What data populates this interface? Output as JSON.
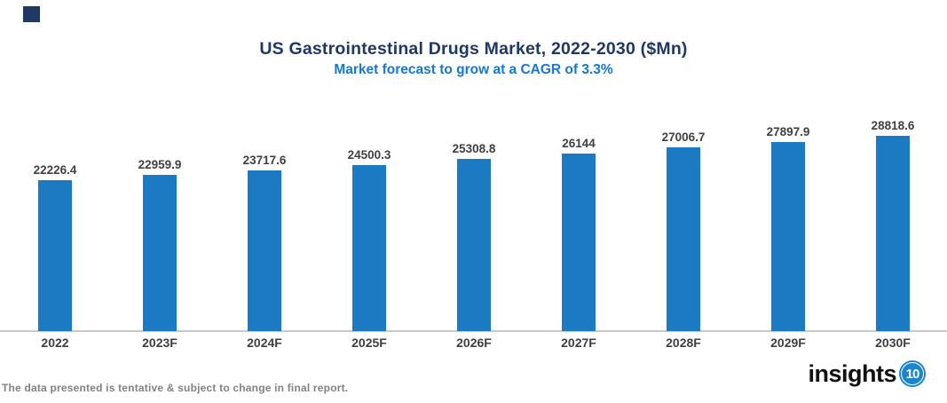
{
  "chart_data": {
    "type": "bar",
    "title": "US Gastrointestinal Drugs Market, 2022-2030 ($Mn)",
    "subtitle": "Market forecast to grow at a CAGR of 3.3%",
    "categories": [
      "2022",
      "2023F",
      "2024F",
      "2025F",
      "2026F",
      "2027F",
      "2028F",
      "2029F",
      "2030F"
    ],
    "values": [
      22226.4,
      22959.9,
      23717.6,
      24500.3,
      25308.8,
      26144,
      27006.7,
      27897.9,
      28818.6
    ],
    "xlabel": "",
    "ylabel": "",
    "ylim": [
      0,
      30000
    ],
    "grid": false,
    "legend": false,
    "y_axis_visible": false,
    "data_labels_visible": true
  },
  "footer": {
    "disclaimer": "The data presented is tentative & subject to change in final report."
  },
  "logo": {
    "text": "insights",
    "badge": "10"
  },
  "colors": {
    "bar": "#1B7AC2",
    "title": "#1F3864",
    "subtitle": "#1577D6",
    "data_label": "#404040",
    "axis_label": "#3F3F3F",
    "footer_text": "#828282",
    "baseline": "#C9C9C9",
    "logo_text": "#111111",
    "logo_badge": "#1C86CA",
    "corner_square": "#1F3864"
  }
}
